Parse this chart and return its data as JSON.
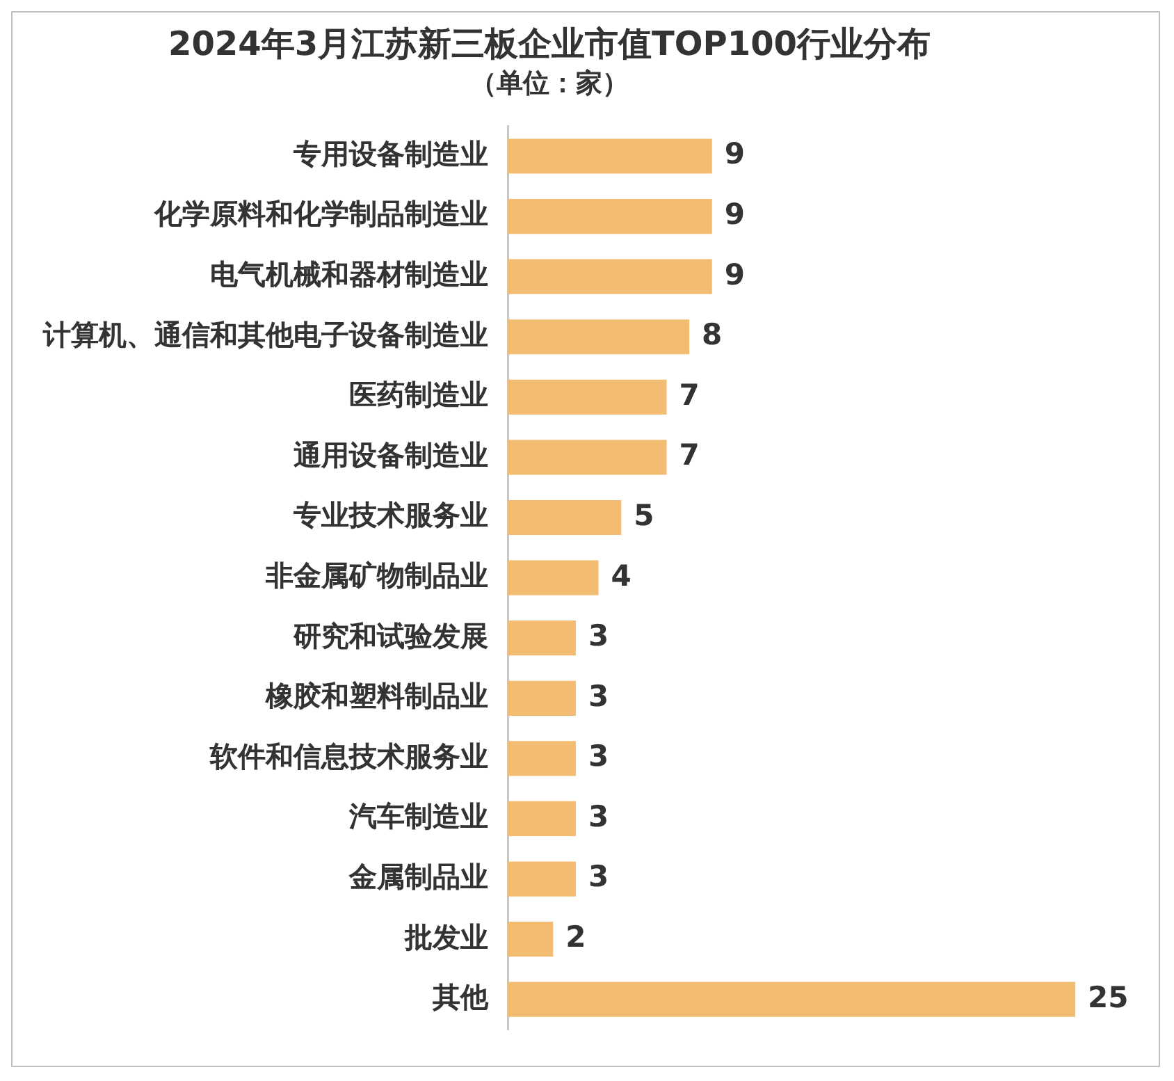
{
  "chart_data": {
    "type": "bar",
    "orientation": "horizontal",
    "title": "2024年3月江苏新三板企业市值TOP100行业分布",
    "subtitle": "（单位：家）",
    "categories": [
      "专用设备制造业",
      "化学原料和化学制品制造业",
      "电气机械和器材制造业",
      "计算机、通信和其他电子设备制造业",
      "医药制造业",
      "通用设备制造业",
      "专业技术服务业",
      "非金属矿物制品业",
      "研究和试验发展",
      "橡胶和塑料制品业",
      "软件和信息技术服务业",
      "汽车制造业",
      "金属制品业",
      "批发业",
      "其他"
    ],
    "values": [
      9,
      9,
      9,
      8,
      7,
      7,
      5,
      4,
      3,
      3,
      3,
      3,
      3,
      2,
      25
    ],
    "color": "#f2bd72",
    "tick_labels": "y",
    "data_labels": true
  }
}
